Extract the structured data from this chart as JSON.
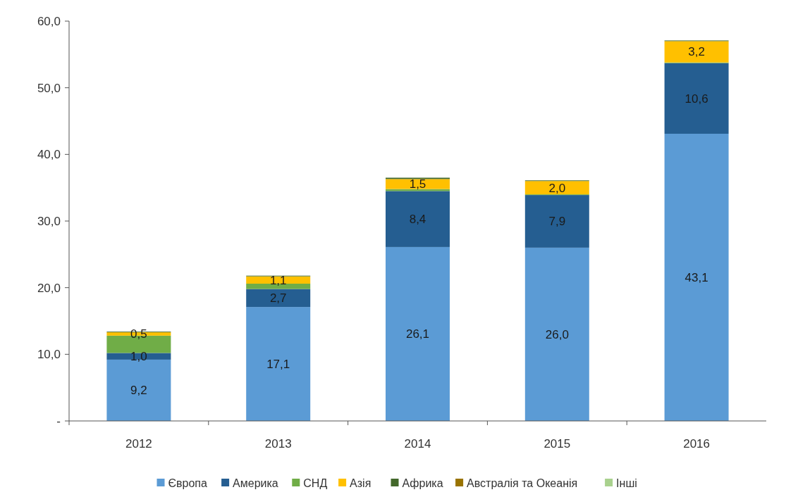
{
  "chart_data": {
    "type": "bar",
    "stacked": true,
    "categories": [
      "2012",
      "2013",
      "2014",
      "2015",
      "2016"
    ],
    "series": [
      {
        "name": "Європа",
        "color": "#5b9bd5",
        "values": [
          9.2,
          17.1,
          26.1,
          26.0,
          43.1
        ],
        "value_labels": [
          "9,2",
          "17,1",
          "26,1",
          "26,0",
          "43,1"
        ]
      },
      {
        "name": "Америка",
        "color": "#255e91",
        "values": [
          1.0,
          2.7,
          8.4,
          7.9,
          10.6
        ],
        "value_labels": [
          "1,0",
          "2,7",
          "8,4",
          "7,9",
          "10,6"
        ]
      },
      {
        "name": "СНД",
        "color": "#70ad47",
        "values": [
          2.6,
          0.8,
          0.3,
          0.1,
          0.1
        ],
        "value_labels": [
          null,
          null,
          null,
          null,
          null
        ]
      },
      {
        "name": "Азія",
        "color": "#ffc000",
        "values": [
          0.5,
          1.1,
          1.5,
          2.0,
          3.2
        ],
        "value_labels": [
          "0,5",
          "1,1",
          "1,5",
          "2,0",
          "3,2"
        ]
      },
      {
        "name": "Африка",
        "color": "#43682b",
        "values": [
          0.1,
          0.1,
          0.2,
          0.1,
          0.1
        ],
        "value_labels": [
          null,
          null,
          null,
          null,
          null
        ]
      },
      {
        "name": "Австралія та Океанія",
        "color": "#997300",
        "values": [
          0.0,
          0.0,
          0.0,
          0.0,
          0.0
        ],
        "value_labels": [
          null,
          null,
          null,
          null,
          null
        ]
      },
      {
        "name": "Інші",
        "color": "#a9d18e",
        "values": [
          0.0,
          0.0,
          0.0,
          0.0,
          0.0
        ],
        "value_labels": [
          null,
          null,
          null,
          null,
          null
        ]
      }
    ],
    "ylim": [
      0,
      60
    ],
    "yticks": [
      {
        "value": 0,
        "label": "-"
      },
      {
        "value": 10,
        "label": "10,0"
      },
      {
        "value": 20,
        "label": "20,0"
      },
      {
        "value": 30,
        "label": "30,0"
      },
      {
        "value": 40,
        "label": "40,0"
      },
      {
        "value": 50,
        "label": "50,0"
      },
      {
        "value": 60,
        "label": "60,0"
      }
    ],
    "grid": false,
    "legend": "bottom"
  }
}
